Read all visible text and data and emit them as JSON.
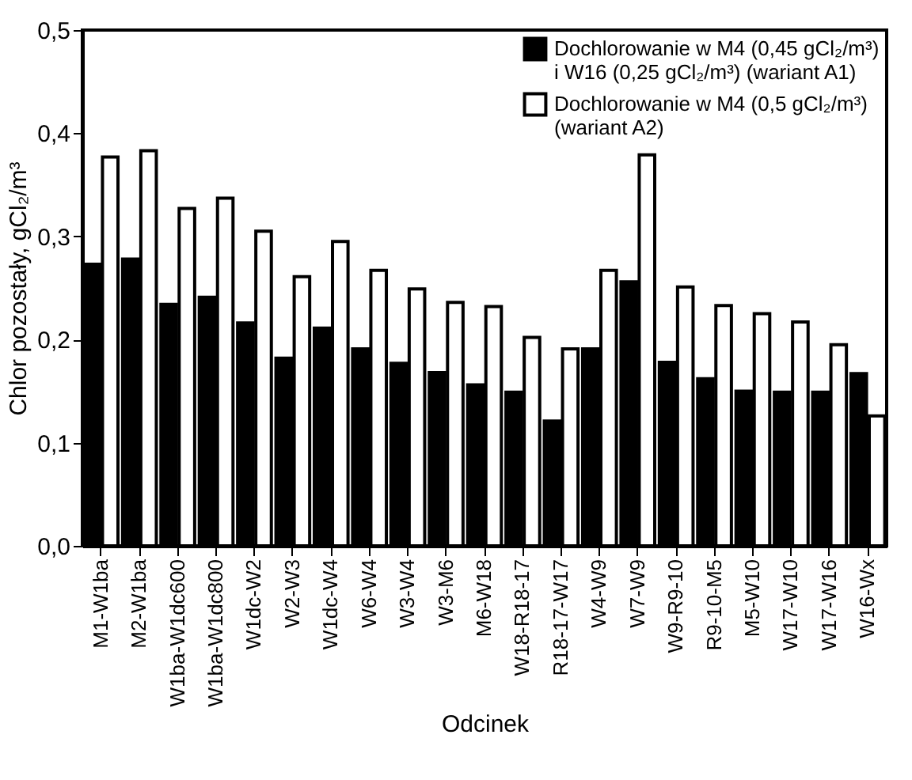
{
  "chart_data": {
    "type": "bar",
    "xlabel": "Odcinek",
    "ylabel": "Chlor pozostały, gCl₂/m³",
    "categories": [
      "M1-W1ba",
      "M2-W1ba",
      "W1ba-W1dc600",
      "W1ba-W1dc800",
      "W1dc-W2",
      "W2-W3",
      "W1dc-W4",
      "W6-W4",
      "W3-W4",
      "W3-M6",
      "M6-W18",
      "W18-R18-17",
      "R18-17-W17",
      "W4-W9",
      "W7-W9",
      "W9-R9-10",
      "R9-10-M5",
      "M5-W10",
      "W17-W10",
      "W17-W16",
      "W16-Wx"
    ],
    "series": [
      {
        "name": "Dochlorowanie w M4 (0,45 gCl₂/m³) i W16 (0,25 gCl₂/m³) (wariant A1)",
        "color": "#000000",
        "values": [
          0.273,
          0.278,
          0.234,
          0.241,
          0.216,
          0.182,
          0.211,
          0.191,
          0.177,
          0.168,
          0.156,
          0.149,
          0.121,
          0.191,
          0.256,
          0.178,
          0.162,
          0.15,
          0.149,
          0.149,
          0.167
        ]
      },
      {
        "name": "Dochlorowanie w M4 (0,5 gCl₂/m³) (wariant A2)",
        "color": "#ffffff",
        "values": [
          0.377,
          0.383,
          0.327,
          0.337,
          0.305,
          0.261,
          0.295,
          0.267,
          0.249,
          0.236,
          0.232,
          0.202,
          0.191,
          0.267,
          0.379,
          0.251,
          0.233,
          0.225,
          0.217,
          0.195,
          0.126
        ]
      }
    ],
    "ylim": [
      0,
      0.5
    ],
    "yticks": [
      {
        "value": 0,
        "label": "0,0"
      },
      {
        "value": 0.1,
        "label": "0,1"
      },
      {
        "value": 0.2,
        "label": "0,2"
      },
      {
        "value": 0.3,
        "label": "0,3"
      },
      {
        "value": 0.4,
        "label": "0,4"
      },
      {
        "value": 0.5,
        "label": "0,5"
      }
    ],
    "legend": "top right",
    "grid": false
  }
}
